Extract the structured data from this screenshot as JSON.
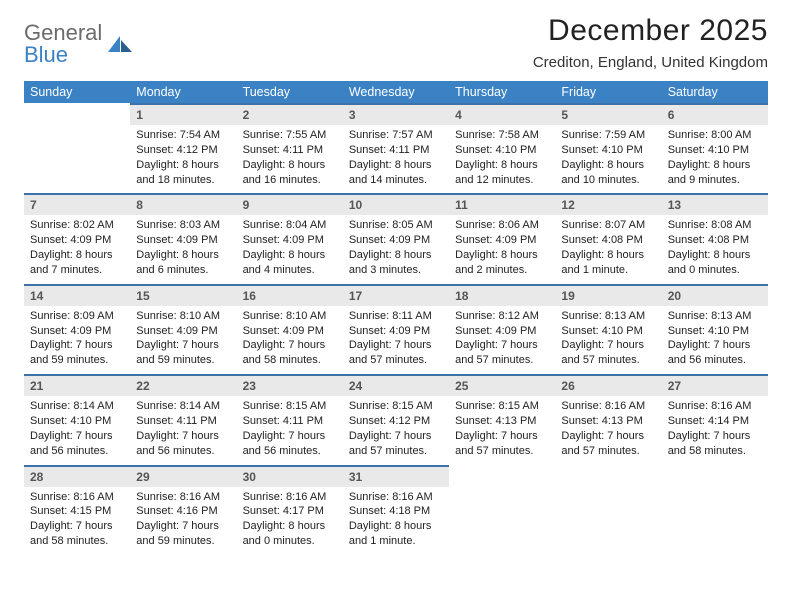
{
  "brand": {
    "general": "General",
    "blue": "Blue"
  },
  "title": "December 2025",
  "location": "Crediton, England, United Kingdom",
  "colors": {
    "header_bg": "#3b82c4",
    "daynum_bg": "#e9e9e9",
    "daynum_border": "#3b72a8",
    "text": "#222222"
  },
  "weekdays": [
    "Sunday",
    "Monday",
    "Tuesday",
    "Wednesday",
    "Thursday",
    "Friday",
    "Saturday"
  ],
  "weeks": [
    [
      null,
      {
        "num": "1",
        "sunrise": "7:54 AM",
        "sunset": "4:12 PM",
        "daylight": "8 hours and 18 minutes."
      },
      {
        "num": "2",
        "sunrise": "7:55 AM",
        "sunset": "4:11 PM",
        "daylight": "8 hours and 16 minutes."
      },
      {
        "num": "3",
        "sunrise": "7:57 AM",
        "sunset": "4:11 PM",
        "daylight": "8 hours and 14 minutes."
      },
      {
        "num": "4",
        "sunrise": "7:58 AM",
        "sunset": "4:10 PM",
        "daylight": "8 hours and 12 minutes."
      },
      {
        "num": "5",
        "sunrise": "7:59 AM",
        "sunset": "4:10 PM",
        "daylight": "8 hours and 10 minutes."
      },
      {
        "num": "6",
        "sunrise": "8:00 AM",
        "sunset": "4:10 PM",
        "daylight": "8 hours and 9 minutes."
      }
    ],
    [
      {
        "num": "7",
        "sunrise": "8:02 AM",
        "sunset": "4:09 PM",
        "daylight": "8 hours and 7 minutes."
      },
      {
        "num": "8",
        "sunrise": "8:03 AM",
        "sunset": "4:09 PM",
        "daylight": "8 hours and 6 minutes."
      },
      {
        "num": "9",
        "sunrise": "8:04 AM",
        "sunset": "4:09 PM",
        "daylight": "8 hours and 4 minutes."
      },
      {
        "num": "10",
        "sunrise": "8:05 AM",
        "sunset": "4:09 PM",
        "daylight": "8 hours and 3 minutes."
      },
      {
        "num": "11",
        "sunrise": "8:06 AM",
        "sunset": "4:09 PM",
        "daylight": "8 hours and 2 minutes."
      },
      {
        "num": "12",
        "sunrise": "8:07 AM",
        "sunset": "4:08 PM",
        "daylight": "8 hours and 1 minute."
      },
      {
        "num": "13",
        "sunrise": "8:08 AM",
        "sunset": "4:08 PM",
        "daylight": "8 hours and 0 minutes."
      }
    ],
    [
      {
        "num": "14",
        "sunrise": "8:09 AM",
        "sunset": "4:09 PM",
        "daylight": "7 hours and 59 minutes."
      },
      {
        "num": "15",
        "sunrise": "8:10 AM",
        "sunset": "4:09 PM",
        "daylight": "7 hours and 59 minutes."
      },
      {
        "num": "16",
        "sunrise": "8:10 AM",
        "sunset": "4:09 PM",
        "daylight": "7 hours and 58 minutes."
      },
      {
        "num": "17",
        "sunrise": "8:11 AM",
        "sunset": "4:09 PM",
        "daylight": "7 hours and 57 minutes."
      },
      {
        "num": "18",
        "sunrise": "8:12 AM",
        "sunset": "4:09 PM",
        "daylight": "7 hours and 57 minutes."
      },
      {
        "num": "19",
        "sunrise": "8:13 AM",
        "sunset": "4:10 PM",
        "daylight": "7 hours and 57 minutes."
      },
      {
        "num": "20",
        "sunrise": "8:13 AM",
        "sunset": "4:10 PM",
        "daylight": "7 hours and 56 minutes."
      }
    ],
    [
      {
        "num": "21",
        "sunrise": "8:14 AM",
        "sunset": "4:10 PM",
        "daylight": "7 hours and 56 minutes."
      },
      {
        "num": "22",
        "sunrise": "8:14 AM",
        "sunset": "4:11 PM",
        "daylight": "7 hours and 56 minutes."
      },
      {
        "num": "23",
        "sunrise": "8:15 AM",
        "sunset": "4:11 PM",
        "daylight": "7 hours and 56 minutes."
      },
      {
        "num": "24",
        "sunrise": "8:15 AM",
        "sunset": "4:12 PM",
        "daylight": "7 hours and 57 minutes."
      },
      {
        "num": "25",
        "sunrise": "8:15 AM",
        "sunset": "4:13 PM",
        "daylight": "7 hours and 57 minutes."
      },
      {
        "num": "26",
        "sunrise": "8:16 AM",
        "sunset": "4:13 PM",
        "daylight": "7 hours and 57 minutes."
      },
      {
        "num": "27",
        "sunrise": "8:16 AM",
        "sunset": "4:14 PM",
        "daylight": "7 hours and 58 minutes."
      }
    ],
    [
      {
        "num": "28",
        "sunrise": "8:16 AM",
        "sunset": "4:15 PM",
        "daylight": "7 hours and 58 minutes."
      },
      {
        "num": "29",
        "sunrise": "8:16 AM",
        "sunset": "4:16 PM",
        "daylight": "7 hours and 59 minutes."
      },
      {
        "num": "30",
        "sunrise": "8:16 AM",
        "sunset": "4:17 PM",
        "daylight": "8 hours and 0 minutes."
      },
      {
        "num": "31",
        "sunrise": "8:16 AM",
        "sunset": "4:18 PM",
        "daylight": "8 hours and 1 minute."
      },
      null,
      null,
      null
    ]
  ],
  "labels": {
    "sunrise": "Sunrise: ",
    "sunset": "Sunset: ",
    "daylight": "Daylight: "
  }
}
